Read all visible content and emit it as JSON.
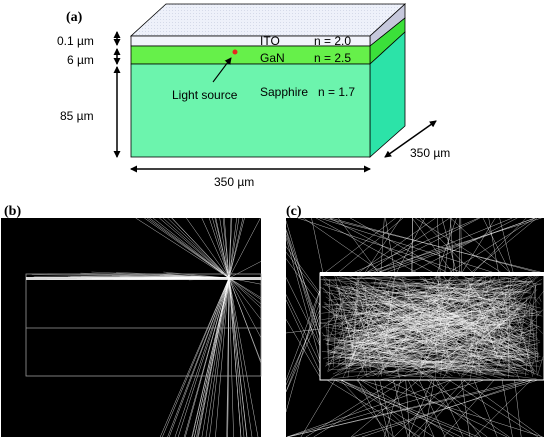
{
  "panels": {
    "a": "(a)",
    "b": "(b)",
    "c": "(c)"
  },
  "layers": {
    "ito": {
      "name": "ITO",
      "index": "n = 2.0",
      "thickness": "0.1 µm"
    },
    "gan": {
      "name": "GaN",
      "index": "n = 2.5",
      "thickness": "6 µm"
    },
    "sapphire": {
      "name": "Sapphire",
      "index": "n = 1.7",
      "thickness": "85 µm"
    }
  },
  "source_label": "Light source",
  "dims": {
    "width": "350 µm",
    "depth": "350 µm"
  },
  "colors": {
    "ito": "#f2f4fb",
    "gan": "#66f04a",
    "sapphire": "#6cf4ad",
    "source": "#e8261f",
    "background_sim": "#000000",
    "rays": "#ffffff"
  }
}
